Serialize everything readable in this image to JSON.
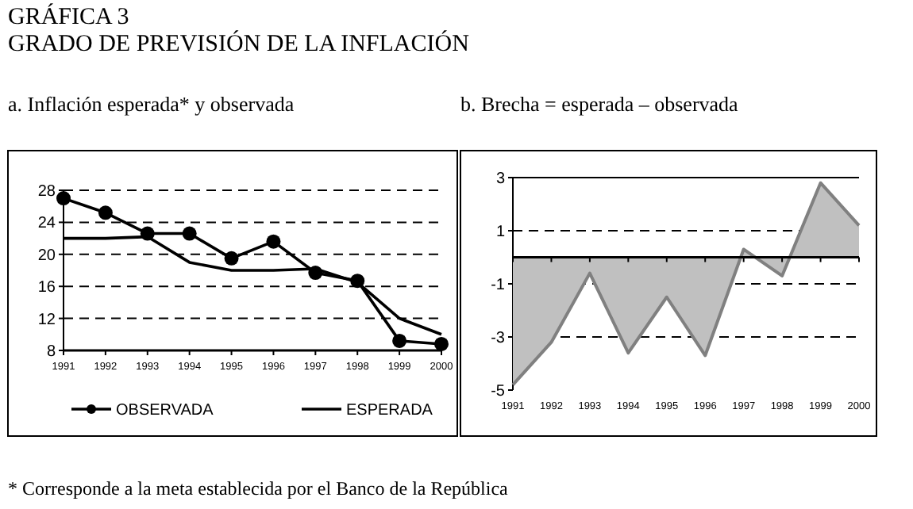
{
  "chart_data": [
    {
      "type": "line",
      "title": "a. Inflación esperada* y observada",
      "categories": [
        "1991",
        "1992",
        "1993",
        "1994",
        "1995",
        "1996",
        "1997",
        "1998",
        "1999",
        "2000"
      ],
      "series": [
        {
          "name": "OBSERVADA",
          "color": "#000000",
          "marker": "circle",
          "values": [
            27,
            25.2,
            22.6,
            22.6,
            19.5,
            21.6,
            17.7,
            16.7,
            9.2,
            8.8
          ]
        },
        {
          "name": "ESPERADA",
          "color": "#000000",
          "marker": "none",
          "values": [
            22,
            22,
            22.2,
            19,
            18,
            18,
            18.2,
            16.5,
            12,
            10
          ]
        }
      ],
      "ylim": [
        8,
        28
      ],
      "yticks": [
        8,
        12,
        16,
        20,
        24,
        28
      ],
      "grid": "y",
      "legend": "bottom",
      "annotations": [
        "GRÁFICA 3",
        "GRADO DE PREVISIÓN DE LA INFLACIÓN",
        "* Corresponde a la meta establecida por el Banco de la República"
      ]
    },
    {
      "type": "area",
      "title": "b. Brecha = esperada – observada",
      "categories": [
        "1991",
        "1992",
        "1993",
        "1994",
        "1995",
        "1996",
        "1997",
        "1998",
        "1999",
        "2000"
      ],
      "series": [
        {
          "color": "#c0c0c0",
          "values": [
            -4.8,
            -3.2,
            -0.6,
            -3.6,
            -1.5,
            -3.7,
            0.3,
            -0.7,
            2.8,
            1.2
          ]
        }
      ],
      "ylim": [
        -5,
        3
      ],
      "yticks": [
        -5,
        -3,
        -1,
        1,
        3
      ],
      "grid": "y"
    }
  ]
}
